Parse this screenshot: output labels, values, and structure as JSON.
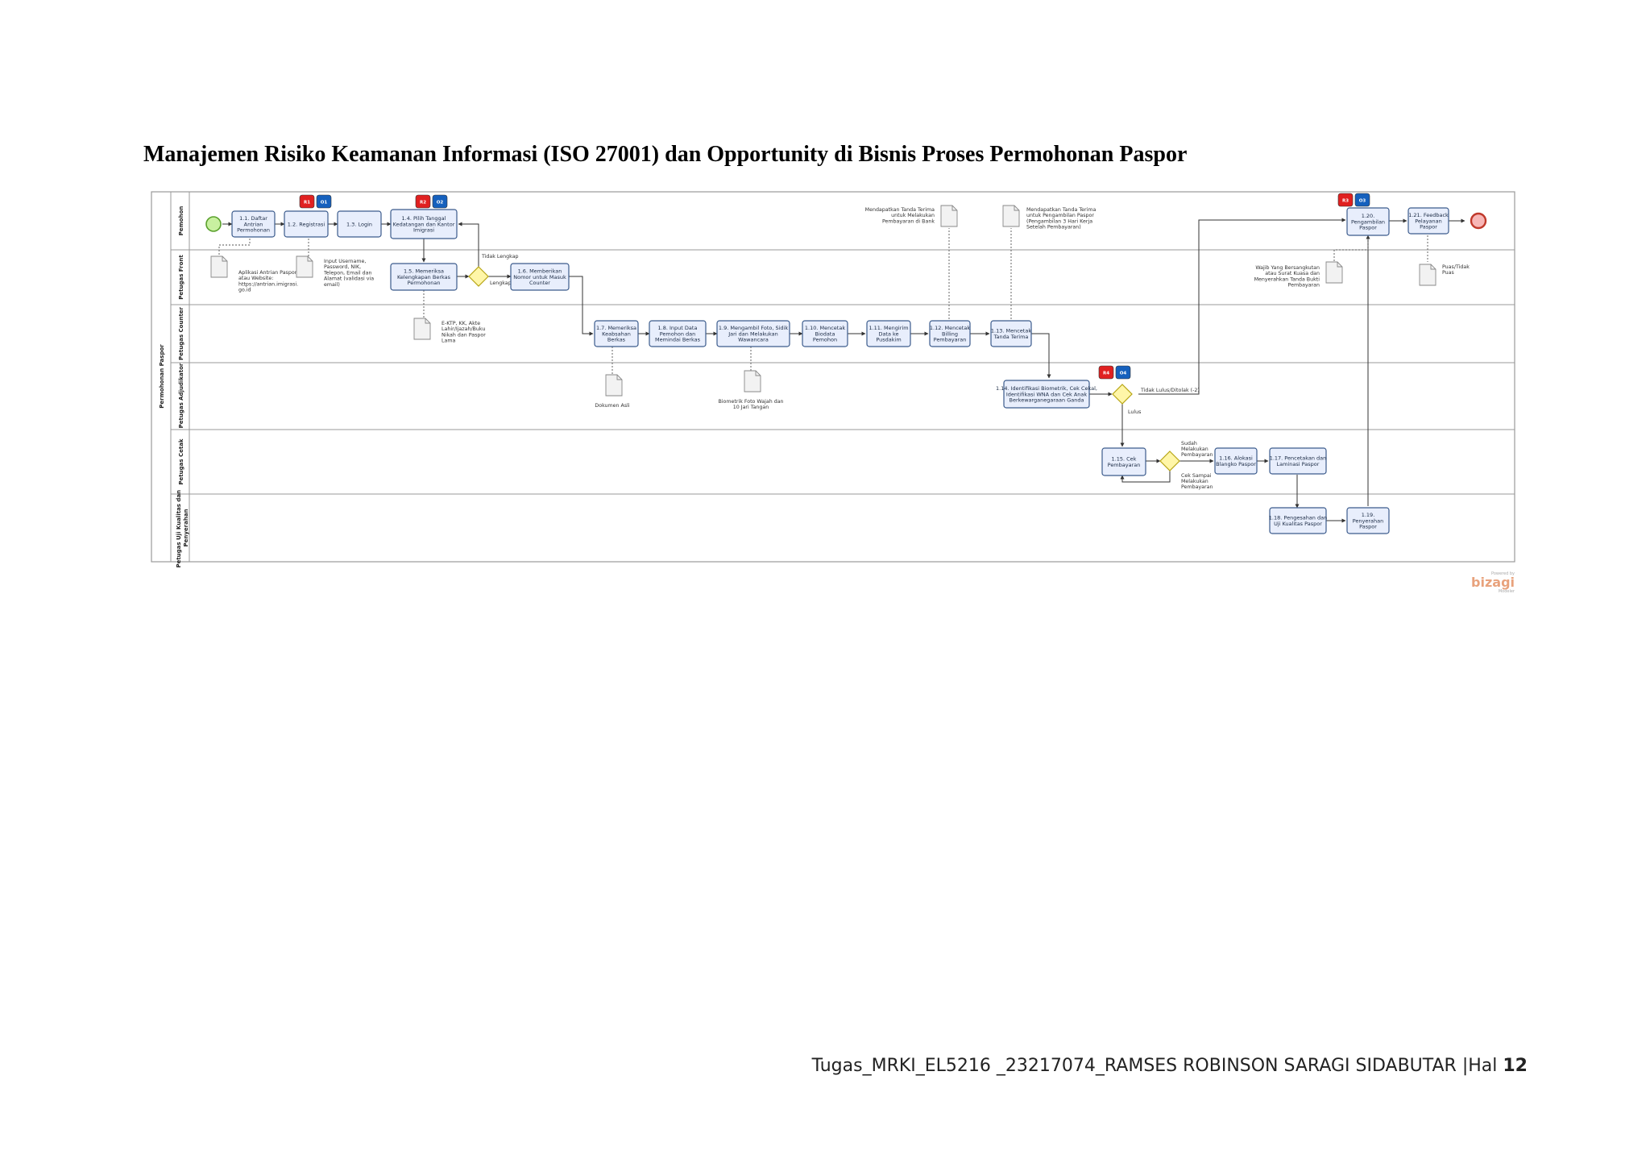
{
  "title": "Manajemen Risiko Keamanan Informasi (ISO 27001) dan Opportunity di Bisnis Proses Permohonan Paspor",
  "pool": {
    "label": "Permohonan Paspor"
  },
  "lanes": [
    {
      "id": "pemohon",
      "label": "Pemohon"
    },
    {
      "id": "front",
      "label": "Petugas Front"
    },
    {
      "id": "counter",
      "label": "Petugas Counter"
    },
    {
      "id": "adjudikator",
      "label": "Petugas Adjudikator"
    },
    {
      "id": "cetak",
      "label": "Petugas Cetak"
    },
    {
      "id": "uji",
      "label": [
        "Petugas Uji Kualitas dan",
        "Penyerahan"
      ]
    }
  ],
  "tasks": [
    {
      "id": "t1_1",
      "lines": [
        "1.1. Daftar",
        "Antrian",
        "Permohonan"
      ]
    },
    {
      "id": "t1_2",
      "lines": [
        "1.2. Registrasi"
      ]
    },
    {
      "id": "t1_3",
      "lines": [
        "1.3. Login"
      ]
    },
    {
      "id": "t1_4",
      "lines": [
        "1.4. Pilih Tanggal",
        "Kedatangan dan Kantor",
        "Imigrasi"
      ]
    },
    {
      "id": "t1_5",
      "lines": [
        "1.5. Memeriksa",
        "Kelengkapan Berkas",
        "Permohonan"
      ]
    },
    {
      "id": "t1_6",
      "lines": [
        "1.6. Memberikan",
        "Nomor untuk Masuk",
        "Counter"
      ]
    },
    {
      "id": "t1_7",
      "lines": [
        "1.7. Memeriksa",
        "Keabsahan",
        "Berkas"
      ]
    },
    {
      "id": "t1_8",
      "lines": [
        "1.8. Input Data",
        "Pemohon dan",
        "Memindai Berkas"
      ]
    },
    {
      "id": "t1_9",
      "lines": [
        "1.9. Mengambil Foto, Sidik",
        "Jari dan Melakukan",
        "Wawancara"
      ]
    },
    {
      "id": "t1_10",
      "lines": [
        "1.10. Mencetak",
        "Biodata",
        "Pemohon"
      ]
    },
    {
      "id": "t1_11",
      "lines": [
        "1.11. Mengirim",
        "Data ke",
        "Pusdakim"
      ]
    },
    {
      "id": "t1_12",
      "lines": [
        "1.12. Mencetak",
        "Billing",
        "Pembayaran"
      ]
    },
    {
      "id": "t1_13",
      "lines": [
        "1.13. Mencetak",
        "Tanda Terima"
      ]
    },
    {
      "id": "t1_14",
      "lines": [
        "1.14. Identifikasi Biometrik, Cek Cekal,",
        "Identifikasi WNA dan Cek Anak",
        "Berkewarganegaraan Ganda"
      ]
    },
    {
      "id": "t1_15",
      "lines": [
        "1.15. Cek",
        "Pembayaran"
      ]
    },
    {
      "id": "t1_16",
      "lines": [
        "1.16. Alokasi",
        "Blangko Paspor"
      ]
    },
    {
      "id": "t1_17",
      "lines": [
        "1.17. Pencetakan dan",
        "Laminasi Paspor"
      ]
    },
    {
      "id": "t1_18",
      "lines": [
        "1.18. Pengesahan dan",
        "Uji Kualitas Paspor"
      ]
    },
    {
      "id": "t1_19",
      "lines": [
        "1.19.",
        "Penyerahan",
        "Paspor"
      ]
    },
    {
      "id": "t1_20",
      "lines": [
        "1.20.",
        "Pengambilan",
        "Paspor"
      ]
    },
    {
      "id": "t1_21",
      "lines": [
        "1.21. Feedback",
        "Pelayanan",
        "Paspor"
      ]
    }
  ],
  "artifacts": [
    {
      "id": "a1",
      "lines": [
        "Aplikasi Antrian Paspor",
        "atau Website:",
        "https://antrian.imigrasi.",
        "go.id"
      ]
    },
    {
      "id": "a2",
      "lines": [
        "Input Username,",
        "Password, NIK,",
        "Telepon, Email dan",
        "Alamat (validasi via",
        "email)"
      ]
    },
    {
      "id": "a3",
      "lines": [
        "E-KTP, KK, Akte",
        "Lahir/Ijazah/Buku",
        "Nikah dan Paspor",
        "Lama"
      ]
    },
    {
      "id": "a4",
      "lines": [
        "Dokumen Asli"
      ]
    },
    {
      "id": "a5",
      "lines": [
        "Biometrik Foto Wajah dan",
        "10 Jari Tangan"
      ]
    },
    {
      "id": "a6",
      "lines": [
        "Mendapatkan Tanda Terima",
        "untuk Melakukan",
        "Pembayaran di Bank"
      ]
    },
    {
      "id": "a7",
      "lines": [
        "Mendapatkan Tanda Terima",
        "untuk Pengambilan Paspor",
        "(Pengambilan 3 Hari Kerja",
        "Setelah Pembayaran)"
      ]
    },
    {
      "id": "a8",
      "lines": [
        "Wajib Yang Bersangkutan",
        "atau Surat Kuasa dan",
        "Menyerahkan Tanda Bukti",
        "Pembayaran"
      ]
    },
    {
      "id": "a9",
      "lines": [
        "Puas/Tidak",
        "Puas"
      ]
    }
  ],
  "gateway_labels": {
    "tidak_lengkap": "Tidak Lengkap",
    "lengkap": "Lengkap",
    "tidak_lulus": "Tidak Lulus/Ditolak (-2)",
    "lulus": "Lulus",
    "sudah_bayar": [
      "Sudah",
      "Melakukan",
      "Pembayaran"
    ],
    "cek_sampai": [
      "Cek Sampai",
      "Melakukan",
      "Pembayaran"
    ]
  },
  "badges": [
    {
      "color": "#e02020",
      "label": "R1"
    },
    {
      "color": "#1560bd",
      "label": "O1"
    },
    {
      "color": "#e02020",
      "label": "R2"
    },
    {
      "color": "#1560bd",
      "label": "O2"
    },
    {
      "color": "#e02020",
      "label": "R3"
    },
    {
      "color": "#1560bd",
      "label": "O3"
    },
    {
      "color": "#e02020",
      "label": "R4"
    },
    {
      "color": "#1560bd",
      "label": "O4"
    }
  ],
  "colors": {
    "task_fill": "#e8eefc",
    "task_stroke": "#3b5b8c",
    "gateway_fill": "#fff6a8",
    "gateway_stroke": "#b7a514",
    "start_fill": "#c8f0a0",
    "start_stroke": "#5aa02c",
    "end_fill": "#f7b6b6",
    "end_stroke": "#c0392b"
  },
  "logo": {
    "brand": "bizagi",
    "tagline": "Powered by",
    "sub": "Modeler"
  },
  "footer": {
    "text": "Tugas_MRKI_EL5216 _23217074_RAMSES ROBINSON SARAGI SIDABUTAR |Hal ",
    "page": "12"
  }
}
